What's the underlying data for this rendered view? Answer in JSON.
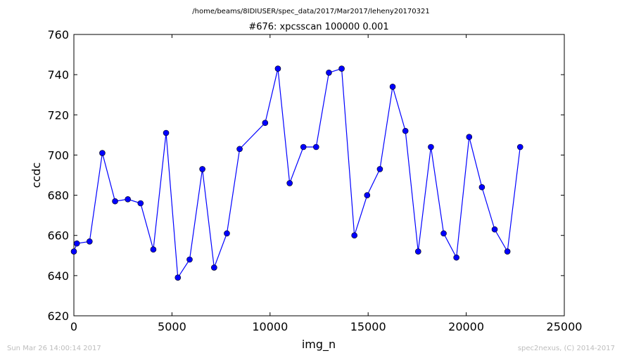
{
  "suptitle": "/home/beams/8IDIUSER/spec_data/2017/Mar2017/leheny20170321",
  "footer": {
    "left": "Sun Mar 26 14:00:14 2017",
    "right": "spec2nexus, (C) 2014-2017"
  },
  "chart_data": {
    "type": "line",
    "title": "#676: xpcsscan 100000 0.001",
    "xlabel": "img_n",
    "ylabel": "ccdc",
    "xlim": [
      0,
      25000
    ],
    "ylim": [
      620,
      760
    ],
    "xticks": [
      0,
      5000,
      10000,
      15000,
      20000,
      25000
    ],
    "yticks": [
      620,
      640,
      660,
      680,
      700,
      720,
      740,
      760
    ],
    "grid": false,
    "legend": false,
    "series": [
      {
        "color": "#0000ff",
        "marker": "circle",
        "x": [
          0,
          150,
          800,
          1450,
          2100,
          2750,
          3400,
          4050,
          4700,
          5300,
          5900,
          6550,
          7150,
          7800,
          8450,
          9750,
          10400,
          11000,
          11700,
          12350,
          13000,
          13650,
          14300,
          14950,
          15600,
          16250,
          16900,
          17550,
          18200,
          18850,
          19500,
          20150,
          20800,
          21450,
          22100,
          22750
        ],
        "y": [
          652,
          656,
          657,
          701,
          677,
          678,
          676,
          653,
          711,
          639,
          648,
          693,
          644,
          661,
          703,
          716,
          743,
          686,
          704,
          704,
          741,
          743,
          660,
          680,
          693,
          734,
          712,
          652,
          704,
          661,
          649,
          709,
          684,
          663,
          652,
          704
        ]
      }
    ]
  }
}
